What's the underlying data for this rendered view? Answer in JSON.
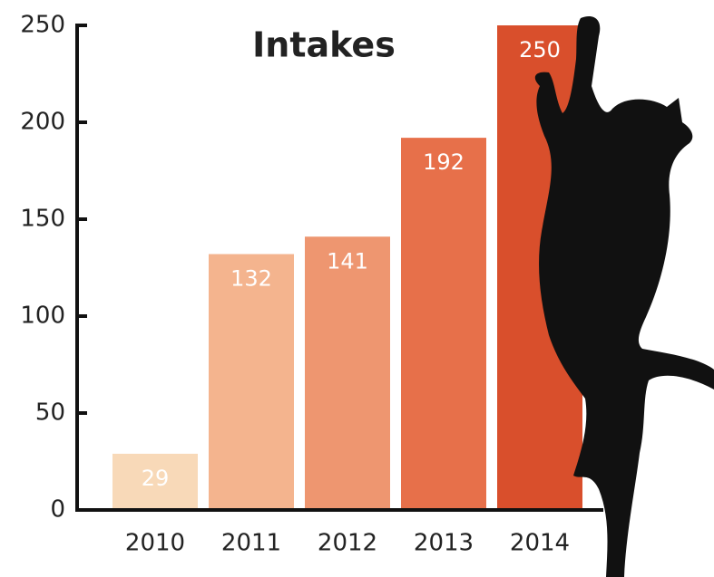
{
  "chart_data": {
    "type": "bar",
    "title": "Intakes",
    "categories": [
      "2010",
      "2011",
      "2012",
      "2013",
      "2014"
    ],
    "values": [
      29,
      132,
      141,
      192,
      250
    ],
    "colors": [
      "#f8d9b8",
      "#f4b48e",
      "#ee9670",
      "#e7704a",
      "#d94f2c"
    ],
    "ylim": [
      0,
      250
    ],
    "yticks": [
      0,
      50,
      100,
      150,
      200,
      250
    ],
    "grid": false
  }
}
